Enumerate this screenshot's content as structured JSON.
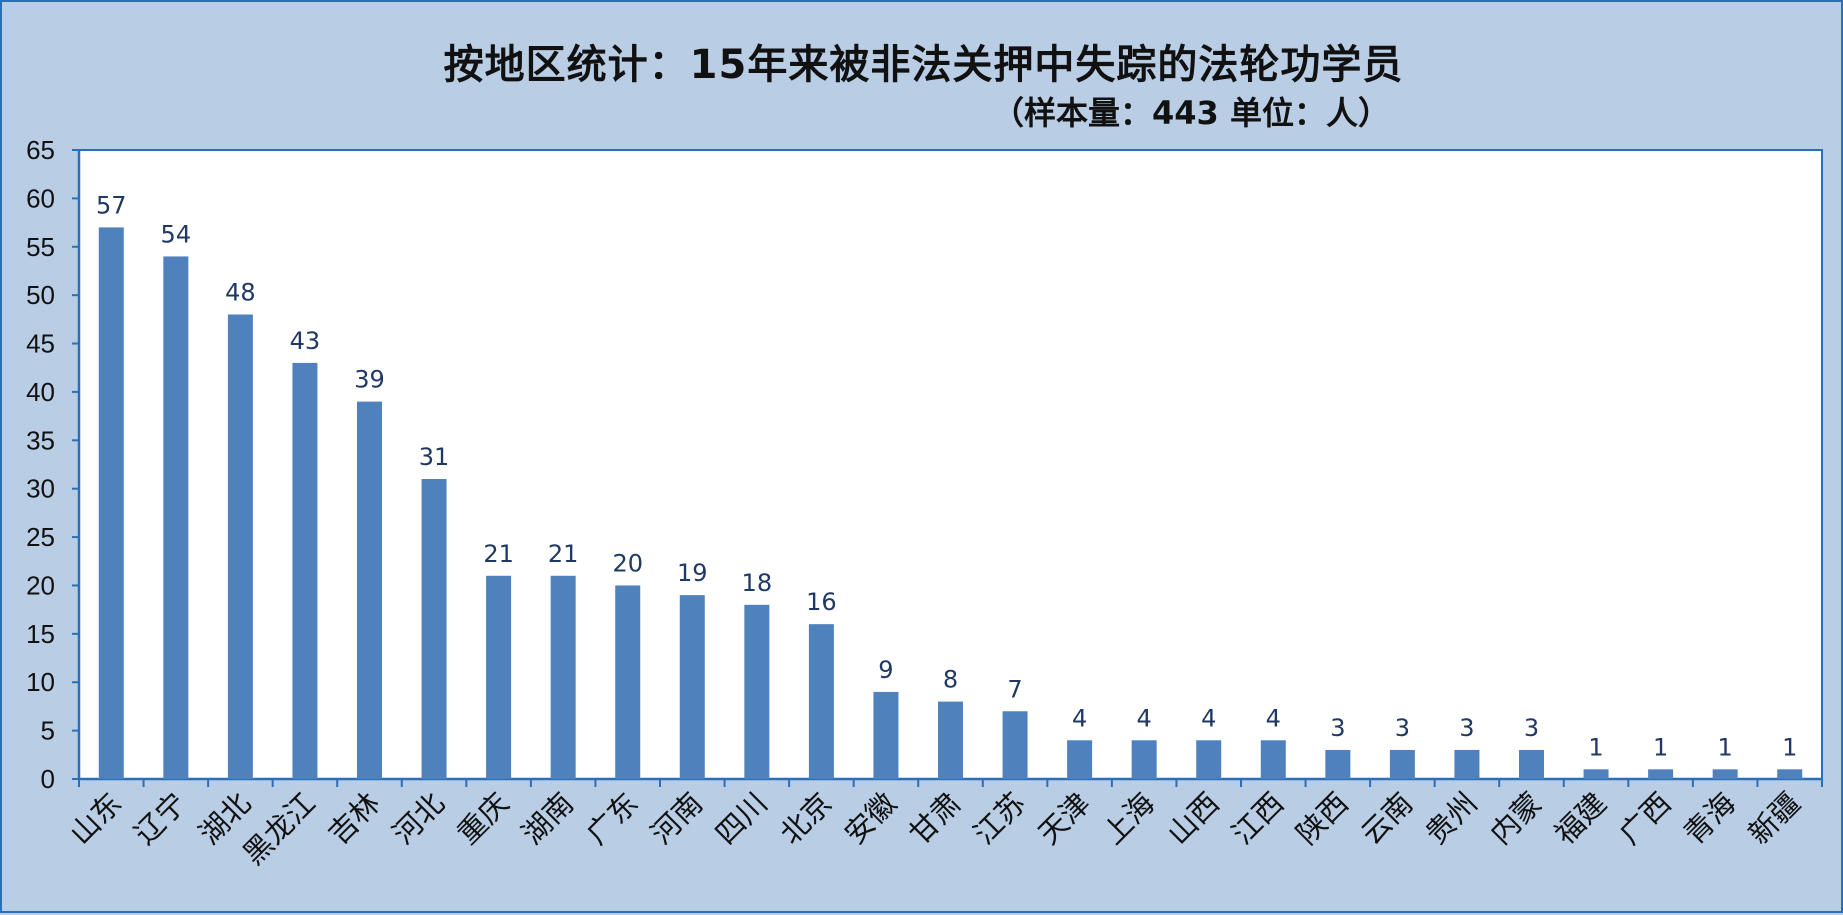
{
  "chart_data": {
    "type": "bar",
    "title": "按地区统计：15年来被非法关押中失踪的法轮功学员",
    "subtitle": "（样本量：443 单位：人）",
    "categories": [
      "山东",
      "辽宁",
      "湖北",
      "黑龙江",
      "吉林",
      "河北",
      "重庆",
      "湖南",
      "广东",
      "河南",
      "四川",
      "北京",
      "安徽",
      "甘肃",
      "江苏",
      "天津",
      "上海",
      "山西",
      "江西",
      "陕西",
      "云南",
      "贵州",
      "内蒙",
      "福建",
      "广西",
      "青海",
      "新疆"
    ],
    "values": [
      57,
      54,
      48,
      43,
      39,
      31,
      21,
      21,
      20,
      19,
      18,
      16,
      9,
      8,
      7,
      4,
      4,
      4,
      4,
      3,
      3,
      3,
      3,
      1,
      1,
      1,
      1
    ],
    "data_labels": [
      "57",
      "54",
      "48",
      "43",
      "39",
      "31",
      "21",
      "21",
      "20",
      "19",
      "18",
      "16",
      "9",
      "8",
      "7",
      "4",
      "4",
      "4",
      "4",
      "3",
      "3",
      "3",
      "3",
      "1",
      "1",
      "1",
      "1"
    ],
    "yticks": [
      "0",
      "5",
      "10",
      "15",
      "20",
      "25",
      "30",
      "35",
      "40",
      "45",
      "50",
      "55",
      "60",
      "65"
    ],
    "ylim": [
      0,
      65
    ],
    "xlabel": "",
    "ylabel": "",
    "grid": false,
    "legend": "none",
    "colors": {
      "bar": "#4f81bd",
      "plot_background": "#ffffff",
      "chart_background": "#b9cde5",
      "axis": "#2a70b8",
      "data_label": "#1f3864",
      "tick_label": "#111111"
    }
  }
}
